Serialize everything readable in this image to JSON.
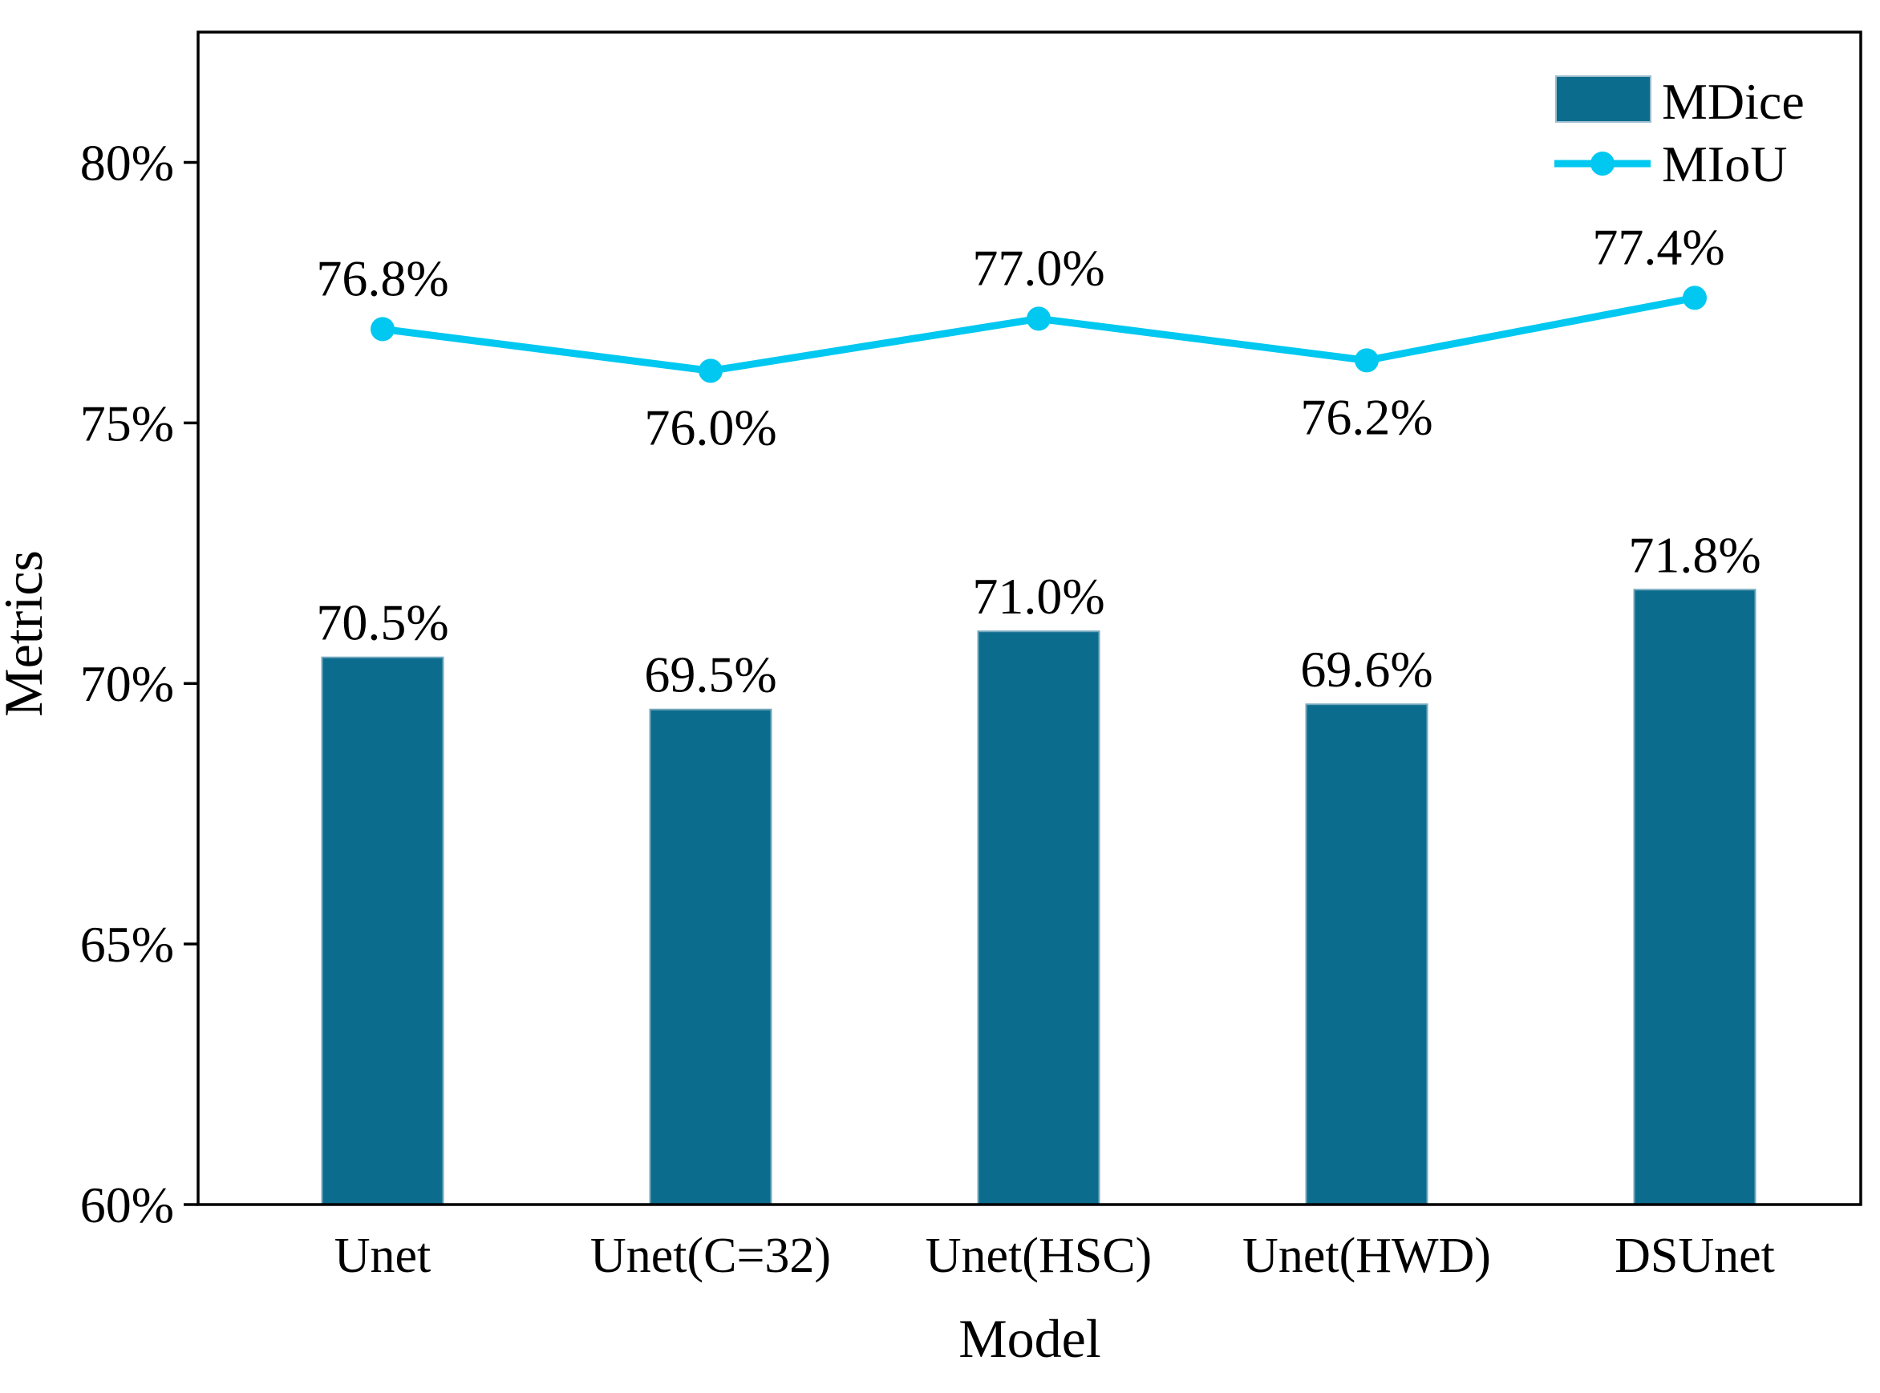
{
  "chart_data": {
    "type": "bar",
    "subtype": "bar-and-line-combo",
    "categories": [
      "Unet",
      "Unet(C=32)",
      "Unet(HSC)",
      "Unet(HWD)",
      "DSUnet"
    ],
    "series": [
      {
        "name": "MDice",
        "type": "bar",
        "values": [
          70.5,
          69.5,
          71.0,
          69.6,
          71.8
        ],
        "labels": [
          "70.5%",
          "69.5%",
          "71.0%",
          "69.6%",
          "71.8%"
        ],
        "color": "#0c6c8e"
      },
      {
        "name": "MIoU",
        "type": "line",
        "values": [
          76.8,
          76.0,
          77.0,
          76.2,
          77.4
        ],
        "labels": [
          "76.8%",
          "76.0%",
          "77.0%",
          "76.2%",
          "77.4%"
        ],
        "label_positions": [
          "above",
          "below",
          "above",
          "below",
          "above"
        ],
        "color": "#00c8f0"
      }
    ],
    "xlabel": "Model",
    "ylabel": "Metrics",
    "ylim": [
      60,
      82.5
    ],
    "yticks": [
      60,
      65,
      70,
      75,
      80
    ],
    "ytick_labels": [
      "60%",
      "65%",
      "70%",
      "75%",
      "80%"
    ],
    "xtick_marks": false,
    "grid": false,
    "legend": {
      "position": "top-right-inside",
      "entries": [
        "MDice",
        "MIoU"
      ]
    },
    "frame_color": "#000000",
    "bar_edge_color": "#74a9be"
  }
}
